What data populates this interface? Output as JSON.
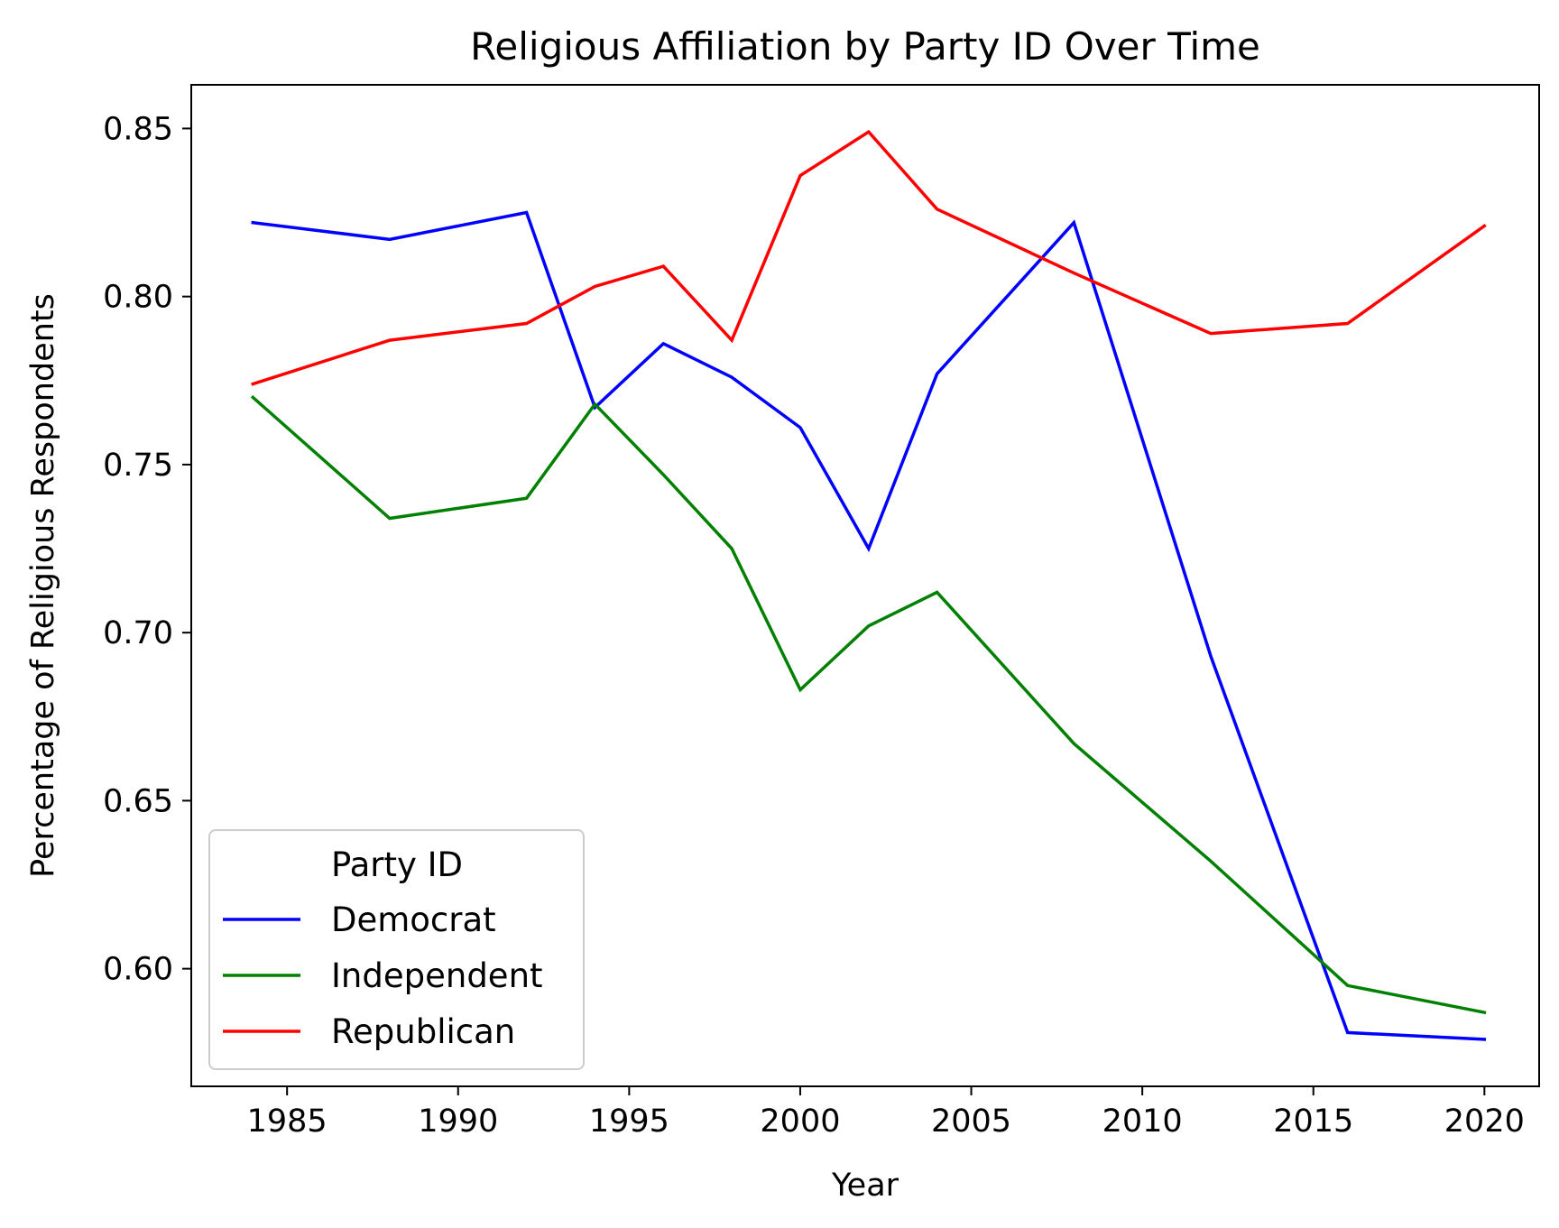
{
  "chart_data": {
    "type": "line",
    "title": "Religious Affiliation by Party ID Over Time",
    "xlabel": "Year",
    "ylabel": "Percentage of Religious Respondents",
    "xlim": [
      1982.2,
      2021.6
    ],
    "ylim": [
      0.565,
      0.863
    ],
    "xticks": [
      1985,
      1990,
      1995,
      2000,
      2005,
      2010,
      2015,
      2020
    ],
    "yticks": [
      0.6,
      0.65,
      0.7,
      0.75,
      0.8,
      0.85
    ],
    "xtick_labels": [
      "1985",
      "1990",
      "1995",
      "2000",
      "2005",
      "2010",
      "2015",
      "2020"
    ],
    "ytick_labels": [
      "0.60",
      "0.65",
      "0.70",
      "0.75",
      "0.80",
      "0.85"
    ],
    "grid": false,
    "legend": {
      "title": "Party ID",
      "placement": "lower-left"
    },
    "series": [
      {
        "name": "Democrat",
        "color": "#0000ff",
        "x": [
          1984,
          1988,
          1992,
          1994,
          1996,
          1998,
          2000,
          2002,
          2004,
          2008,
          2012,
          2016,
          2020
        ],
        "y": [
          0.822,
          0.817,
          0.825,
          0.767,
          0.786,
          0.776,
          0.761,
          0.725,
          0.777,
          0.822,
          0.693,
          0.581,
          0.579
        ]
      },
      {
        "name": "Independent",
        "color": "#008000",
        "x": [
          1984,
          1988,
          1992,
          1994,
          1996,
          1998,
          2000,
          2002,
          2004,
          2008,
          2012,
          2016,
          2020
        ],
        "y": [
          0.77,
          0.734,
          0.74,
          0.768,
          0.747,
          0.725,
          0.683,
          0.702,
          0.712,
          0.667,
          0.632,
          0.595,
          0.587
        ]
      },
      {
        "name": "Republican",
        "color": "#ff0000",
        "x": [
          1984,
          1988,
          1992,
          1994,
          1996,
          1998,
          2000,
          2002,
          2004,
          2008,
          2012,
          2016,
          2020
        ],
        "y": [
          0.774,
          0.787,
          0.792,
          0.803,
          0.809,
          0.787,
          0.836,
          0.849,
          0.826,
          0.807,
          0.789,
          0.792,
          0.821
        ]
      }
    ]
  }
}
